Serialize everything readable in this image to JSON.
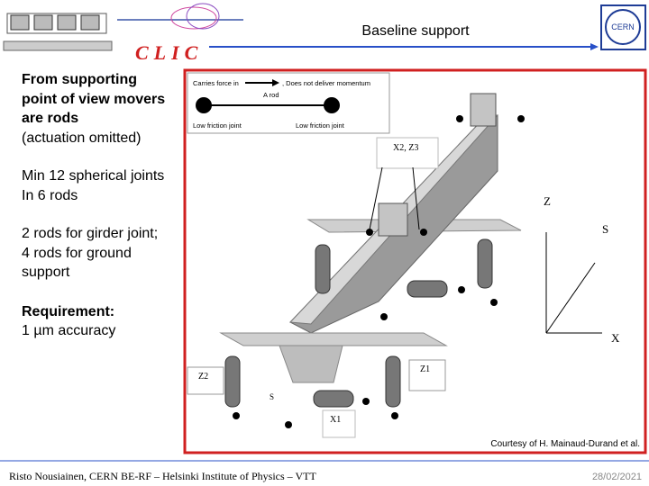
{
  "header": {
    "title": "Baseline support",
    "logo": "CLIC",
    "cern_logo": "CERN"
  },
  "left_text": [
    [
      {
        "text": "From supporting point of view movers are rods",
        "bold": true
      },
      {
        "text": "(actuation omitted)",
        "bold": false
      }
    ],
    [
      {
        "text": "Min 12 spherical joints",
        "bold": false
      },
      {
        "text": "In 6 rods",
        "bold": false
      }
    ],
    [
      {
        "text": "2 rods for girder joint; 4 rods for ground support",
        "bold": false
      }
    ],
    [
      {
        "text": "Requirement:",
        "bold": true
      },
      {
        "text": "1 µm accuracy",
        "bold": false
      }
    ]
  ],
  "figure": {
    "legend": {
      "carries": "Carries force in",
      "no_momentum": ", Does not deliver momentum",
      "rod": "A rod",
      "joint_left": "Low friction joint",
      "joint_right": "Low friction joint"
    },
    "labels": {
      "x2z3": "X2, Z3",
      "z": "Z",
      "s": "S",
      "x": "X",
      "z2": "Z2",
      "z1": "Z1",
      "s_small": "S",
      "x1": "X1"
    },
    "courtesy": "Courtesy of H. Mainaud-Durand et al."
  },
  "footer": {
    "author": "Risto Nousiainen, CERN BE-RF – Helsinki Institute of Physics – VTT",
    "date": "28/02/2021"
  }
}
